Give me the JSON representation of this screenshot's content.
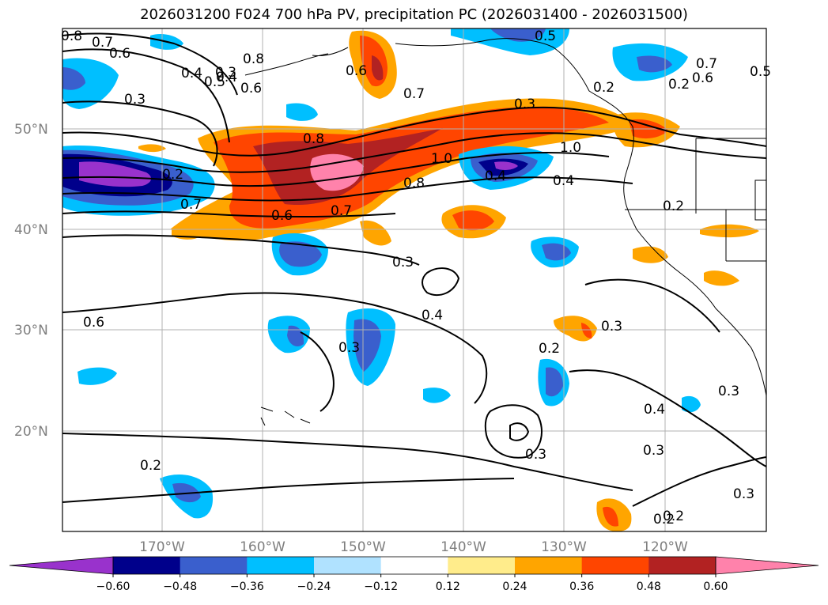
{
  "title": "2026031200 F024 700 hPa PV, precipitation PC (2026031400 - 2026031500)",
  "lat_labels": [
    "50°N",
    "40°N",
    "30°N",
    "20°N"
  ],
  "lon_labels": [
    "170°W",
    "160°W",
    "150°W",
    "140°W",
    "130°W",
    "120°W"
  ],
  "colorbar": {
    "ticks": [
      "−0.60",
      "−0.48",
      "−0.36",
      "−0.24",
      "−0.12",
      "0.12",
      "0.24",
      "0.36",
      "0.48",
      "0.60"
    ],
    "colors": [
      "#9932cc",
      "#00008b",
      "#3a5fcd",
      "#00bfff",
      "#b0e2ff",
      "#ffffff",
      "#ffec8b",
      "#ffa500",
      "#ff4500",
      "#b22222",
      "#ff82ab"
    ]
  },
  "contour_labels": [
    "0.8",
    "0.7",
    "0.6",
    "0.5",
    "0.4",
    "0.3",
    "0.6",
    "0.8",
    "0.6",
    "0.4",
    "0.3",
    "0.7",
    "0.3",
    "0.2",
    "0.5",
    "0.5",
    "0.6",
    "0.7",
    "0.2",
    "0.8",
    "1.0",
    "1.0",
    "0.8",
    "0.4",
    "0.2",
    "0.7",
    "0.6",
    "0.7",
    "0.3",
    "0.2",
    "0.4",
    "0.6",
    "0.3",
    "0.2",
    "0.3",
    "0.4",
    "0.3",
    "0.2",
    "0.3",
    "0.3",
    "0.2",
    "0.2",
    "0.3",
    "0.4"
  ]
}
